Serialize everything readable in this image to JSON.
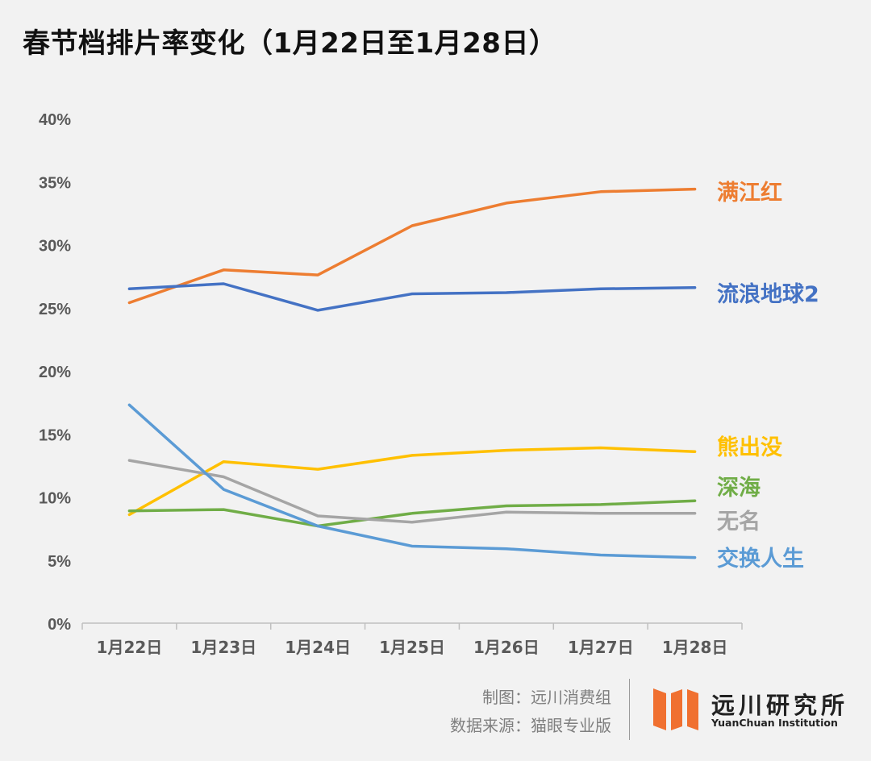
{
  "header": {
    "title": "春节档排片率变化（1月22日至1月28日）"
  },
  "chart_data": {
    "type": "line",
    "title": "春节档排片率变化（1月22日至1月28日）",
    "categories": [
      "1月22日",
      "1月23日",
      "1月24日",
      "1月25日",
      "1月26日",
      "1月27日",
      "1月28日"
    ],
    "y_ticks": [
      "0%",
      "5%",
      "10%",
      "15%",
      "20%",
      "25%",
      "30%",
      "35%",
      "40%"
    ],
    "ylim": [
      0,
      40
    ],
    "grid": false,
    "legend": "direct labels at right end of each line",
    "series": [
      {
        "name": "满江红",
        "color": "#ed7d31",
        "values": [
          25.4,
          28.0,
          27.6,
          31.5,
          33.3,
          34.2,
          34.4
        ]
      },
      {
        "name": "流浪地球2",
        "color": "#4472c4",
        "values": [
          26.5,
          26.9,
          24.8,
          26.1,
          26.2,
          26.5,
          26.6
        ]
      },
      {
        "name": "熊出没",
        "color": "#ffc000",
        "values": [
          8.6,
          12.8,
          12.2,
          13.3,
          13.7,
          13.9,
          13.6
        ]
      },
      {
        "name": "深海",
        "color": "#70ad47",
        "values": [
          8.9,
          9.0,
          7.7,
          8.7,
          9.3,
          9.4,
          9.7
        ]
      },
      {
        "name": "无名",
        "color": "#a5a5a5",
        "values": [
          12.9,
          11.6,
          8.5,
          8.0,
          8.8,
          8.7,
          8.7
        ]
      },
      {
        "name": "交换人生",
        "color": "#5b9bd5",
        "values": [
          17.3,
          10.6,
          7.7,
          6.1,
          5.9,
          5.4,
          5.2
        ]
      }
    ]
  },
  "footer": {
    "credit_line1": "制图：远川消费组",
    "credit_line2": "数据来源：猫眼专业版",
    "logo_name": "远川研究所",
    "logo_en": "YuanChuan Institution",
    "logo_color": "#f07030"
  }
}
